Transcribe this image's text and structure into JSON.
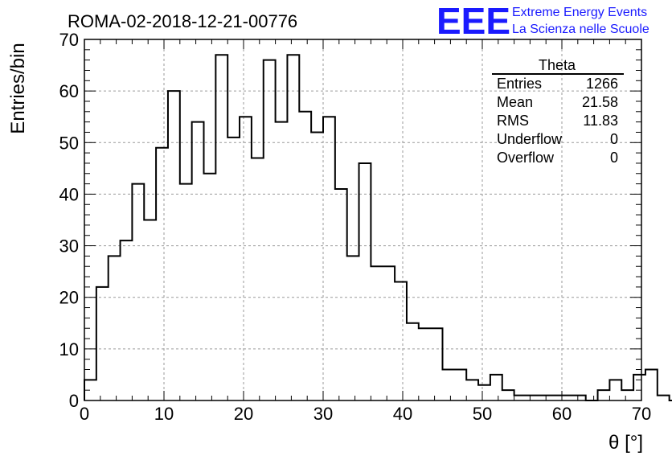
{
  "header": {
    "title": "ROMA-02-2018-12-21-00776",
    "logo_letters": "EEE",
    "logo_line1": "Extreme Energy Events",
    "logo_line2": "La Scienza nelle Scuole"
  },
  "stats_box": {
    "name": "Theta",
    "rows": [
      {
        "label": "Entries",
        "value": "1266"
      },
      {
        "label": "Mean",
        "value": "21.58"
      },
      {
        "label": "RMS",
        "value": "11.83"
      },
      {
        "label": "Underflow",
        "value": "0"
      },
      {
        "label": "Overflow",
        "value": "0"
      }
    ]
  },
  "colors": {
    "logo": "#1a1aff",
    "line": "#000000",
    "grid": "#9a9a9a"
  },
  "chart_data": {
    "type": "histogram",
    "xlabel": "θ [°]",
    "ylabel": "Entries/bin",
    "xlim": [
      0,
      70
    ],
    "ylim": [
      0,
      70
    ],
    "x_ticks": [
      0,
      10,
      20,
      30,
      40,
      50,
      60,
      70
    ],
    "y_ticks": [
      0,
      10,
      20,
      30,
      40,
      50,
      60,
      70
    ],
    "grid": true,
    "bin_width": 1.5,
    "bin_edges_start": 0,
    "values": [
      4,
      22,
      28,
      31,
      42,
      35,
      49,
      60,
      42,
      54,
      44,
      67,
      51,
      55,
      47,
      66,
      54,
      67,
      56,
      52,
      55,
      41,
      28,
      46,
      26,
      26,
      23,
      15,
      14,
      14,
      6,
      6,
      4,
      3,
      5,
      2,
      1,
      1,
      1,
      1,
      1,
      1,
      0,
      2,
      4,
      2,
      5,
      6,
      1,
      0
    ]
  }
}
